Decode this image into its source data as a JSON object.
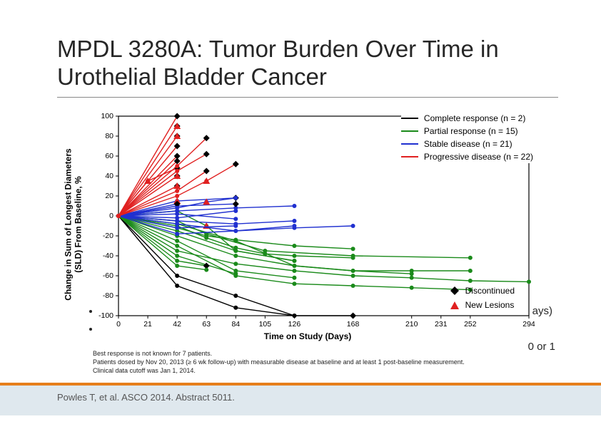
{
  "title": "MPDL 3280A: Tumor Burden Over Time in Urothelial Bladder Cancer",
  "chart": {
    "type": "line-spaghetti",
    "x_label": "Time on Study (Days)",
    "y_label_line1": "Change in Sum of Longest Diameters",
    "y_label_line2": "(SLD) From Baseline, %",
    "y_ticks": [
      -100,
      -80,
      -60,
      -40,
      -20,
      0,
      20,
      40,
      60,
      80,
      100
    ],
    "x_ticks": [
      0,
      21,
      42,
      63,
      84,
      105,
      126,
      168,
      210,
      231,
      252,
      294
    ],
    "xlim": [
      0,
      294
    ],
    "ylim": [
      -100,
      100
    ],
    "colors": {
      "CR": "#000000",
      "PR": "#1a8a1a",
      "SD": "#2030d0",
      "PD": "#e02020",
      "discontinued": "#000000",
      "newlesion": "#e02020",
      "grid": "#888888",
      "bg": "#ffffff"
    },
    "legend": [
      {
        "label": "Complete response (n = 2)",
        "color": "#000000"
      },
      {
        "label": "Partial response (n = 15)",
        "color": "#1a8a1a"
      },
      {
        "label": "Stable disease (n = 21)",
        "color": "#2030d0"
      },
      {
        "label": "Progressive disease (n = 22)",
        "color": "#e02020"
      }
    ],
    "legend_markers": [
      {
        "label": "Discontinued",
        "shape": "diamond",
        "color": "#000000"
      },
      {
        "label": "New Lesions",
        "shape": "triangle",
        "color": "#e02020"
      }
    ],
    "series": [
      {
        "cat": "CR",
        "pts": [
          [
            0,
            0
          ],
          [
            42,
            -60
          ],
          [
            84,
            -80
          ],
          [
            126,
            -100
          ]
        ],
        "disc": false
      },
      {
        "cat": "CR",
        "pts": [
          [
            0,
            0
          ],
          [
            42,
            -70
          ],
          [
            84,
            -92
          ],
          [
            126,
            -100
          ],
          [
            168,
            -100
          ]
        ],
        "disc": true
      },
      {
        "cat": "PR",
        "pts": [
          [
            0,
            0
          ],
          [
            42,
            -35
          ],
          [
            84,
            -48
          ],
          [
            126,
            -55
          ],
          [
            168,
            -60
          ],
          [
            210,
            -62
          ],
          [
            252,
            -65
          ],
          [
            294,
            -66
          ]
        ],
        "disc": false
      },
      {
        "cat": "PR",
        "pts": [
          [
            0,
            0
          ],
          [
            42,
            -20
          ],
          [
            84,
            -40
          ],
          [
            126,
            -50
          ],
          [
            168,
            -55
          ],
          [
            210,
            -58
          ]
        ],
        "disc": false
      },
      {
        "cat": "PR",
        "pts": [
          [
            0,
            0
          ],
          [
            42,
            -15
          ],
          [
            84,
            -35
          ],
          [
            126,
            -45
          ]
        ],
        "disc": false
      },
      {
        "cat": "PR",
        "pts": [
          [
            0,
            0
          ],
          [
            42,
            -30
          ],
          [
            84,
            -60
          ],
          [
            126,
            -68
          ],
          [
            168,
            -70
          ],
          [
            210,
            -72
          ],
          [
            252,
            -74
          ]
        ],
        "disc": false
      },
      {
        "cat": "PR",
        "pts": [
          [
            0,
            0
          ],
          [
            42,
            -25
          ],
          [
            84,
            -55
          ],
          [
            126,
            -62
          ]
        ],
        "disc": false
      },
      {
        "cat": "PR",
        "pts": [
          [
            0,
            0
          ],
          [
            42,
            -40
          ],
          [
            84,
            -58
          ]
        ],
        "disc": false
      },
      {
        "cat": "PR",
        "pts": [
          [
            0,
            0
          ],
          [
            42,
            -10
          ],
          [
            63,
            -22
          ],
          [
            84,
            -32
          ],
          [
            105,
            -38
          ],
          [
            126,
            -40
          ],
          [
            168,
            -42
          ]
        ],
        "disc": false
      },
      {
        "cat": "PR",
        "pts": [
          [
            0,
            0
          ],
          [
            42,
            -45
          ],
          [
            63,
            -50
          ]
        ],
        "disc": true
      },
      {
        "cat": "PR",
        "pts": [
          [
            0,
            0
          ],
          [
            42,
            -12
          ],
          [
            63,
            -20
          ],
          [
            84,
            -24
          ],
          [
            126,
            -30
          ],
          [
            168,
            -33
          ]
        ],
        "disc": false
      },
      {
        "cat": "PR",
        "pts": [
          [
            0,
            0
          ],
          [
            42,
            -50
          ],
          [
            63,
            -54
          ]
        ],
        "disc": false
      },
      {
        "cat": "PR",
        "pts": [
          [
            0,
            0
          ],
          [
            42,
            -5
          ],
          [
            63,
            -18
          ],
          [
            105,
            -35
          ],
          [
            168,
            -40
          ],
          [
            252,
            -42
          ]
        ],
        "disc": false
      },
      {
        "cat": "PR",
        "pts": [
          [
            0,
            0
          ],
          [
            42,
            5
          ],
          [
            63,
            -10
          ],
          [
            84,
            -35
          ],
          [
            126,
            -45
          ]
        ],
        "disc": false,
        "nl": [
          63
        ]
      },
      {
        "cat": "PR",
        "pts": [
          [
            0,
            0
          ],
          [
            42,
            -8
          ],
          [
            84,
            -25
          ],
          [
            126,
            -50
          ],
          [
            168,
            -55
          ],
          [
            210,
            -55
          ],
          [
            252,
            -55
          ]
        ],
        "disc": false
      },
      {
        "cat": "SD",
        "pts": [
          [
            0,
            0
          ],
          [
            42,
            5
          ],
          [
            84,
            8
          ],
          [
            126,
            10
          ]
        ],
        "disc": false
      },
      {
        "cat": "SD",
        "pts": [
          [
            0,
            0
          ],
          [
            42,
            -5
          ],
          [
            84,
            -8
          ],
          [
            126,
            -5
          ]
        ],
        "disc": false
      },
      {
        "cat": "SD",
        "pts": [
          [
            0,
            0
          ],
          [
            42,
            10
          ],
          [
            84,
            12
          ]
        ],
        "disc": true
      },
      {
        "cat": "SD",
        "pts": [
          [
            0,
            0
          ],
          [
            42,
            -8
          ],
          [
            84,
            -15
          ],
          [
            126,
            -12
          ],
          [
            168,
            -10
          ]
        ],
        "disc": false
      },
      {
        "cat": "SD",
        "pts": [
          [
            0,
            0
          ],
          [
            42,
            15
          ],
          [
            84,
            18
          ]
        ],
        "disc": true,
        "nl": [
          42
        ]
      },
      {
        "cat": "SD",
        "pts": [
          [
            0,
            0
          ],
          [
            42,
            -18
          ],
          [
            84,
            -15
          ],
          [
            126,
            -10
          ]
        ],
        "disc": false
      },
      {
        "cat": "SD",
        "pts": [
          [
            0,
            0
          ],
          [
            42,
            2
          ],
          [
            84,
            -3
          ]
        ],
        "disc": false
      },
      {
        "cat": "SD",
        "pts": [
          [
            0,
            0
          ],
          [
            42,
            12
          ]
        ],
        "disc": true
      },
      {
        "cat": "SD",
        "pts": [
          [
            0,
            0
          ],
          [
            42,
            -12
          ],
          [
            84,
            -10
          ]
        ],
        "disc": false
      },
      {
        "cat": "SD",
        "pts": [
          [
            0,
            0
          ],
          [
            42,
            8
          ],
          [
            63,
            14
          ],
          [
            84,
            18
          ]
        ],
        "disc": false,
        "nl": [
          63
        ]
      },
      {
        "cat": "SD",
        "pts": [
          [
            0,
            0
          ],
          [
            42,
            -2
          ],
          [
            84,
            5
          ]
        ],
        "disc": false
      },
      {
        "cat": "PD",
        "pts": [
          [
            0,
            0
          ],
          [
            42,
            40
          ]
        ],
        "disc": true,
        "nl": [
          42
        ]
      },
      {
        "cat": "PD",
        "pts": [
          [
            0,
            0
          ],
          [
            42,
            60
          ]
        ],
        "disc": true
      },
      {
        "cat": "PD",
        "pts": [
          [
            0,
            0
          ],
          [
            42,
            80
          ]
        ],
        "disc": true,
        "nl": [
          42
        ]
      },
      {
        "cat": "PD",
        "pts": [
          [
            0,
            0
          ],
          [
            42,
            100
          ]
        ],
        "disc": true
      },
      {
        "cat": "PD",
        "pts": [
          [
            0,
            0
          ],
          [
            21,
            35
          ],
          [
            42,
            48
          ]
        ],
        "disc": true,
        "nl": [
          21
        ]
      },
      {
        "cat": "PD",
        "pts": [
          [
            0,
            0
          ],
          [
            42,
            25
          ],
          [
            63,
            45
          ]
        ],
        "disc": true
      },
      {
        "cat": "PD",
        "pts": [
          [
            0,
            0
          ],
          [
            42,
            55
          ]
        ],
        "disc": true
      },
      {
        "cat": "PD",
        "pts": [
          [
            0,
            0
          ],
          [
            42,
            30
          ]
        ],
        "disc": true,
        "nl": [
          42
        ]
      },
      {
        "cat": "PD",
        "pts": [
          [
            0,
            0
          ],
          [
            42,
            70
          ]
        ],
        "disc": true
      },
      {
        "cat": "PD",
        "pts": [
          [
            0,
            0
          ],
          [
            42,
            90
          ]
        ],
        "disc": true,
        "nl": [
          42
        ]
      },
      {
        "cat": "PD",
        "pts": [
          [
            0,
            0
          ],
          [
            42,
            50
          ],
          [
            63,
            78
          ]
        ],
        "disc": true
      },
      {
        "cat": "PD",
        "pts": [
          [
            0,
            0
          ],
          [
            42,
            20
          ],
          [
            63,
            35
          ],
          [
            84,
            52
          ]
        ],
        "disc": true,
        "nl": [
          63
        ]
      },
      {
        "cat": "PD",
        "pts": [
          [
            0,
            0
          ],
          [
            42,
            45
          ],
          [
            63,
            62
          ]
        ],
        "disc": true
      }
    ],
    "line_width": 1.4,
    "marker_size": 3
  },
  "bullets": [
    "",
    ""
  ],
  "partial_text_right1": "ays)",
  "partial_text_right2": "0 or 1",
  "footnotes": [
    "Best response is not known for 7 patients.",
    "Patients dosed by Nov 20, 2013 (≥ 6 wk follow-up) with measurable disease at baseline and at least 1 post-baseline measurement.",
    "Clinical data cutoff was Jan 1, 2014."
  ],
  "reference": "Powles T,  et al. ASCO 2014. Abstract 5011."
}
